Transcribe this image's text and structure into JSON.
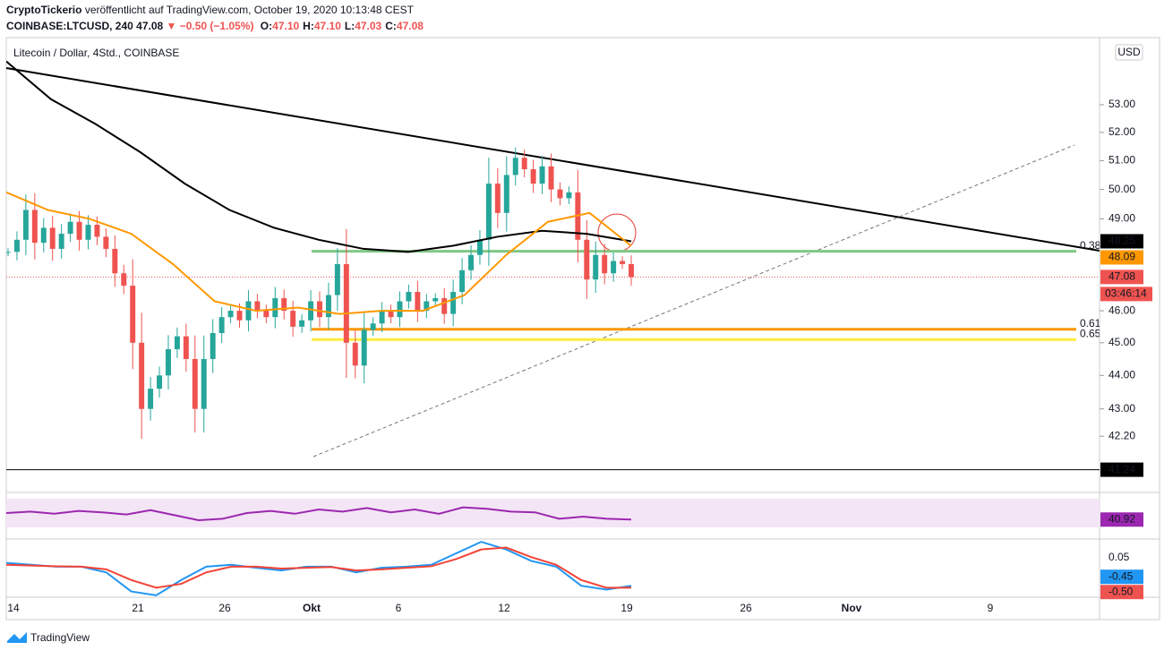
{
  "header": {
    "author": "CryptoTickerio",
    "published": "veröffentlicht auf TradingView.com, October 19, 2020 10:13:48 CEST",
    "symbol": "COINBASE:LTCUSD, 240",
    "last": "47.08",
    "change": "▼ −0.50 (−1.05%)",
    "ohlc": [
      "O:",
      "47.10",
      "H:",
      "47.10",
      "L:",
      "47.03",
      "C:",
      "47.08"
    ]
  },
  "chart": {
    "title": "Litecoin / Dollar, 4Std., COINBASE",
    "currency": "USD",
    "log_scale": true,
    "ylim": [
      40.65,
      55.5
    ],
    "yticks": [
      {
        "value": 53,
        "label": "53.00"
      },
      {
        "value": 52,
        "label": "52.00"
      },
      {
        "value": 51,
        "label": "51.00"
      },
      {
        "value": 50,
        "label": "50.00"
      },
      {
        "value": 49,
        "label": "49.00"
      },
      {
        "value": 46,
        "label": "46.00"
      },
      {
        "value": 45,
        "label": "45.00"
      },
      {
        "value": 44,
        "label": "44.00"
      },
      {
        "value": 43,
        "label": "43.00"
      },
      {
        "value": 42.2,
        "label": "42.20"
      }
    ],
    "closes": [
      47.9,
      48.3,
      49.3,
      48.2,
      48.7,
      48.0,
      48.5,
      48.9,
      48.3,
      48.8,
      48.4,
      48.0,
      47.2,
      46.8,
      45.0,
      43.0,
      43.6,
      44.0,
      44.8,
      45.2,
      44.5,
      43.0,
      44.5,
      45.3,
      45.8,
      46.0,
      45.7,
      46.3,
      46.0,
      45.8,
      46.4,
      46.0,
      45.5,
      45.7,
      46.3,
      45.8,
      46.5,
      47.5,
      45.0,
      44.3,
      45.4,
      45.6,
      46.0,
      45.8,
      46.3,
      46.6,
      46.0,
      46.3,
      46.4,
      45.9,
      46.6,
      47.3,
      47.8,
      48.3,
      50.2,
      49.2,
      50.5,
      51.1,
      50.7,
      50.2,
      50.8,
      50.0,
      49.7,
      49.9,
      48.3,
      47.0,
      47.8,
      47.2,
      47.6,
      47.5,
      47.08
    ],
    "ma_50": [
      49.9,
      49.3,
      49.0,
      48.5,
      47.5,
      46.3,
      46.0,
      46.1,
      45.9,
      46.0,
      46.0,
      46.5,
      47.8,
      48.9,
      49.2,
      48.1
    ],
    "ma_200": [
      54.6,
      53.2,
      52.3,
      51.3,
      50.2,
      49.3,
      48.7,
      48.3,
      48.0,
      47.9,
      48.1,
      48.4,
      48.6,
      48.5,
      48.25
    ],
    "levels": [
      {
        "label": "0.38",
        "price": 47.92,
        "color": "#81c784"
      },
      {
        "label": "0.61",
        "price": 45.42,
        "color": "#ff9800"
      },
      {
        "label": "0.65",
        "price": 45.1,
        "color": "#ffeb3b"
      }
    ],
    "price_labels": [
      {
        "value": 48.25,
        "label": "48.25",
        "color": "#000000"
      },
      {
        "value": 48.09,
        "label": "48.09",
        "color": "#ff9800"
      },
      {
        "value": 47.08,
        "label": "47.08",
        "color": "#ef5350"
      },
      {
        "value": 41.24,
        "label": "41.24",
        "color": "#000000"
      }
    ],
    "countdown": "03:46:14",
    "time_labels": [
      "14",
      "21",
      "26",
      "Okt",
      "6",
      "12",
      "19",
      "26",
      "Nov",
      "9"
    ],
    "rsi": {
      "ylim": [
        30,
        70
      ],
      "values": [
        50,
        52,
        49,
        53,
        51,
        48,
        54,
        47,
        40,
        42,
        50,
        53,
        49,
        55,
        52,
        57,
        51,
        55,
        49,
        58,
        56,
        52,
        51,
        42,
        45,
        42,
        40.92
      ],
      "label": {
        "value": 40.92,
        "label": "40.92"
      },
      "color": "#9c27b0"
    },
    "macd": {
      "ylim": [
        -0.75,
        0.75
      ],
      "macd": [
        0.15,
        0.1,
        0.05,
        0.05,
        -0.1,
        -0.6,
        -0.7,
        -0.3,
        0.05,
        0.1,
        0.02,
        -0.05,
        0.05,
        0.05,
        -0.1,
        0.02,
        0.05,
        0.1,
        0.4,
        0.7,
        0.5,
        0.2,
        0.05,
        -0.45,
        -0.55,
        -0.45
      ],
      "signal": [
        0.1,
        0.08,
        0.06,
        0.05,
        -0.02,
        -0.3,
        -0.5,
        -0.4,
        -0.1,
        0.05,
        0.05,
        0.0,
        0.02,
        0.04,
        -0.05,
        -0.02,
        0.02,
        0.06,
        0.25,
        0.5,
        0.55,
        0.3,
        0.1,
        -0.3,
        -0.5,
        -0.5
      ],
      "labels": [
        {
          "value": 0.05,
          "label": "0.05",
          "color": "#ffffff"
        },
        {
          "value": -0.45,
          "label": "-0.45",
          "color": "#2196f3"
        },
        {
          "value": -0.5,
          "label": "-0.50",
          "color": "#ef5350"
        }
      ]
    }
  },
  "footer": {
    "brand": "TradingView"
  }
}
